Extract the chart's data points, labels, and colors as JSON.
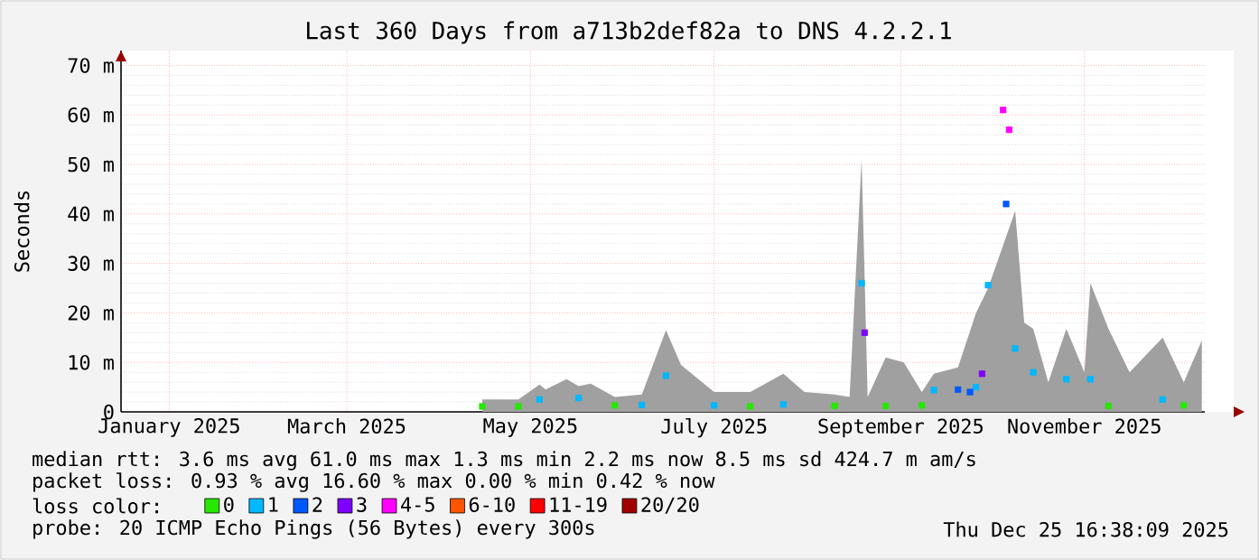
{
  "chart_data": {
    "type": "scatter",
    "title": "Last 360 Days from a713b2def82a to DNS 4.2.2.1",
    "ylabel": "Seconds",
    "legend_title": "loss color:",
    "xlim": [
      "2024-12-30",
      "2025-12-25"
    ],
    "xticks": [
      {
        "value": "2025-01-15",
        "label": "January 2025"
      },
      {
        "value": "2025-03-15",
        "label": "March 2025"
      },
      {
        "value": "2025-05-15",
        "label": "May 2025"
      },
      {
        "value": "2025-07-15",
        "label": "July 2025"
      },
      {
        "value": "2025-09-15",
        "label": "September 2025"
      },
      {
        "value": "2025-11-15",
        "label": "November 2025"
      }
    ],
    "ylim": [
      0,
      73
    ],
    "yticks": [
      0,
      {
        "value": 10,
        "label": "10 m"
      },
      {
        "value": 20,
        "label": "20 m"
      },
      {
        "value": 30,
        "label": "30 m"
      },
      {
        "value": 40,
        "label": "40 m"
      },
      {
        "value": 50,
        "label": "50 m"
      },
      {
        "value": 60,
        "label": "60 m"
      },
      {
        "value": 70,
        "label": "70 m"
      }
    ],
    "grid": true,
    "legend": "bottom",
    "series": [
      {
        "type": "area",
        "color": "#a0a0a0",
        "x": [
          "2025-04-29",
          "2025-05-11",
          "2025-05-18",
          "2025-05-20",
          "2025-05-27",
          "2025-05-31",
          "2025-06-04",
          "2025-06-12",
          "2025-06-21",
          "2025-06-29",
          "2025-07-04",
          "2025-07-15",
          "2025-07-27",
          "2025-08-07",
          "2025-08-14",
          "2025-08-24",
          "2025-08-29",
          "2025-09-02",
          "2025-09-04",
          "2025-09-10",
          "2025-09-16",
          "2025-09-22",
          "2025-09-26",
          "2025-10-04",
          "2025-10-10",
          "2025-10-14",
          "2025-10-16",
          "2025-10-22",
          "2025-10-23",
          "2025-10-26",
          "2025-10-29",
          "2025-11-03",
          "2025-11-09",
          "2025-11-15",
          "2025-11-17",
          "2025-11-23",
          "2025-11-30",
          "2025-12-11",
          "2025-12-18",
          "2025-12-24"
        ],
        "values": [
          2.5,
          2.5,
          5.5,
          4.5,
          6.6,
          5.2,
          5.7,
          3,
          3.5,
          16.5,
          9.5,
          4,
          4,
          7.7,
          4,
          3.5,
          3,
          51,
          3,
          11,
          10,
          4,
          7.7,
          9,
          20,
          25,
          null,
          null,
          40.6,
          18,
          16.8,
          6,
          16.8,
          8,
          26,
          16.8,
          8,
          15,
          6,
          14.4
        ]
      },
      {
        "name": "0",
        "color": "#26e800",
        "marker": "square",
        "x": [
          "2025-04-29",
          "2025-05-11",
          "2025-06-12",
          "2025-07-27",
          "2025-08-24",
          "2025-09-10",
          "2025-09-22",
          "2025-11-23",
          "2025-12-18"
        ],
        "values": [
          1.1,
          1.1,
          1.3,
          1.1,
          1.2,
          1.2,
          1.3,
          1.2,
          1.3
        ]
      },
      {
        "name": "1",
        "color": "#00b8ff",
        "marker": "square",
        "x": [
          "2025-05-18",
          "2025-05-31",
          "2025-06-21",
          "2025-06-29",
          "2025-07-15",
          "2025-08-07",
          "2025-09-02",
          "2025-09-26",
          "2025-10-10",
          "2025-10-14",
          "2025-10-23",
          "2025-10-29",
          "2025-11-09",
          "2025-11-17",
          "2025-12-11"
        ],
        "values": [
          2.5,
          2.8,
          1.4,
          7.3,
          1.3,
          1.5,
          26,
          4.4,
          5,
          25.6,
          12.8,
          8,
          6.6,
          6.6,
          2.5
        ]
      },
      {
        "name": "2",
        "color": "#0059ff",
        "marker": "square",
        "x": [
          "2025-10-04",
          "2025-10-08",
          "2025-10-20"
        ],
        "values": [
          4.5,
          4,
          42
        ]
      },
      {
        "name": "3",
        "color": "#7e00ff",
        "marker": "square",
        "x": [
          "2025-09-03",
          "2025-10-12"
        ],
        "values": [
          16,
          7.7
        ]
      },
      {
        "name": "4-5",
        "color": "#ff00ff",
        "marker": "square",
        "x": [
          "2025-10-19",
          "2025-10-21"
        ],
        "values": [
          61,
          57
        ]
      },
      {
        "name": "6-10",
        "color": "#ff5500"
      },
      {
        "name": "11-19",
        "color": "#ff0000"
      },
      {
        "name": "20/20",
        "color": "#a10000"
      }
    ],
    "annotations": [
      "median rtt: 3.6 ms avg 61.0 ms max 1.3 ms min 2.2 ms now 8.5 ms sd 424.7 m am/s",
      "packet loss: 0.93 % avg 16.60 % max 0.00 % min 0.42 % now",
      "probe: 20 ICMP Echo Pings (56 Bytes) every 300s",
      "Thu Dec 25 16:38:09 2025"
    ]
  }
}
